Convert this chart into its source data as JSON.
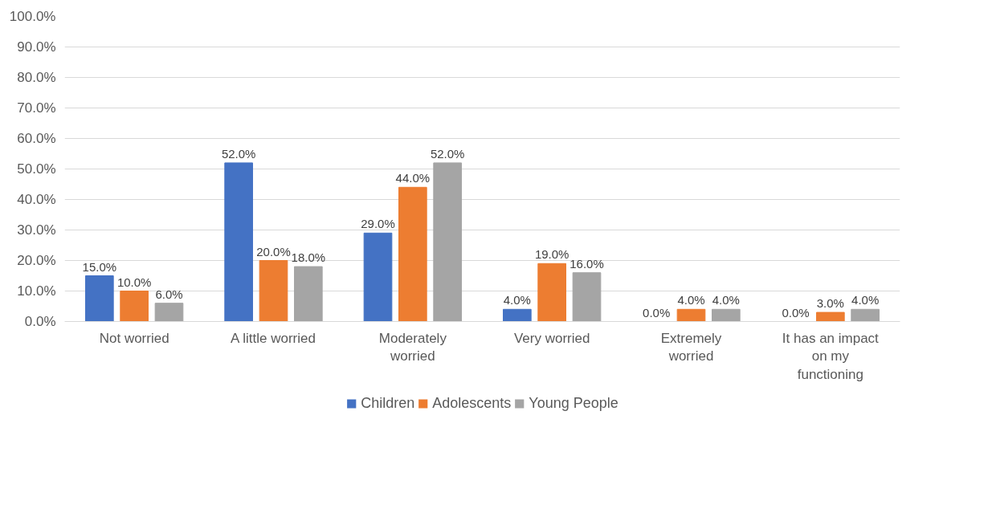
{
  "chart_data": {
    "type": "bar",
    "categories": [
      "Not worried",
      "A little worried",
      "Moderately worried",
      "Very worried",
      "Extremely worried",
      "It has an impact on my functioning"
    ],
    "series": [
      {
        "name": "Children",
        "color": "#4472c4",
        "values": [
          15,
          52,
          29,
          4,
          0,
          0
        ],
        "value_labels": [
          "15.0%",
          "52.0%",
          "29.0%",
          "4.0%",
          "0.0%",
          "0.0%"
        ]
      },
      {
        "name": "Adolescents",
        "color": "#ed7d31",
        "values": [
          10,
          20,
          44,
          19,
          4,
          3
        ],
        "value_labels": [
          "10.0%",
          "20.0%",
          "44.0%",
          "19.0%",
          "4.0%",
          "3.0%"
        ]
      },
      {
        "name": "Young People",
        "color": "#a5a5a5",
        "values": [
          6,
          18,
          52,
          16,
          4,
          4
        ],
        "value_labels": [
          "6.0%",
          "18.0%",
          "52.0%",
          "16.0%",
          "4.0%",
          "4.0%"
        ]
      }
    ],
    "ylim": [
      0,
      100
    ],
    "yticks": [
      {
        "value": 0,
        "label": "0.0%"
      },
      {
        "value": 10,
        "label": "10.0%"
      },
      {
        "value": 20,
        "label": "20.0%"
      },
      {
        "value": 30,
        "label": "30.0%"
      },
      {
        "value": 40,
        "label": "40.0%"
      },
      {
        "value": 50,
        "label": "50.0%"
      },
      {
        "value": 60,
        "label": "60.0%"
      },
      {
        "value": 70,
        "label": "70.0%"
      },
      {
        "value": 80,
        "label": "80.0%"
      },
      {
        "value": 90,
        "label": "90.0%"
      },
      {
        "value": 100,
        "label": "100.0%"
      }
    ],
    "grid": "y",
    "legend": "bottom"
  }
}
